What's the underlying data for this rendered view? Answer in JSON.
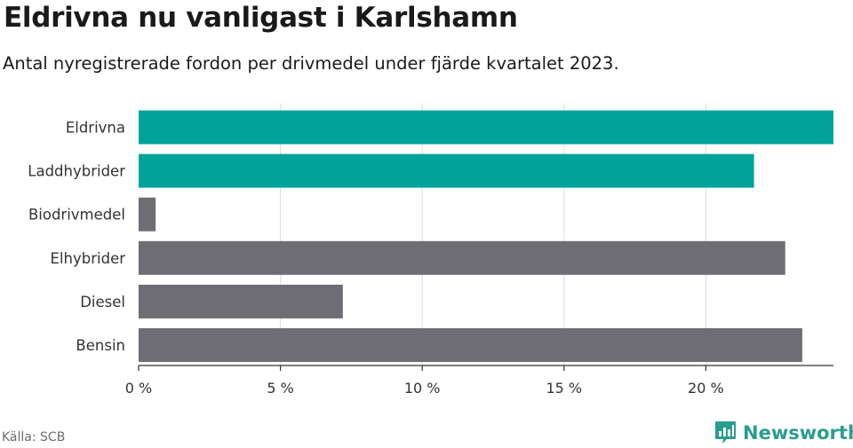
{
  "header": {
    "title": "Eldrivna nu vanligast i Karlshamn",
    "subtitle": "Antal nyregistrerade fordon per drivmedel under fjärde kvartalet 2023."
  },
  "footer": {
    "source": "Källa: SCB",
    "brand": "Newsworthy"
  },
  "chart_data": {
    "type": "bar",
    "orientation": "horizontal",
    "categories": [
      "Eldrivna",
      "Laddhybrider",
      "Biodrivmedel",
      "Elhybrider",
      "Diesel",
      "Bensin"
    ],
    "values": [
      24.5,
      21.7,
      0.6,
      22.8,
      7.2,
      23.4
    ],
    "highlighted": [
      true,
      true,
      false,
      false,
      false,
      false
    ],
    "xlim": [
      0,
      24.5
    ],
    "xticks": [
      0,
      5,
      10,
      15,
      20
    ],
    "xtick_labels": [
      "0 %",
      "5 %",
      "10 %",
      "15 %",
      "20 %"
    ],
    "grid": true,
    "colors": {
      "highlight": "#00a39a",
      "default": "#6e6d73",
      "grid": "#dcdcdc",
      "axis": "#333333"
    }
  }
}
